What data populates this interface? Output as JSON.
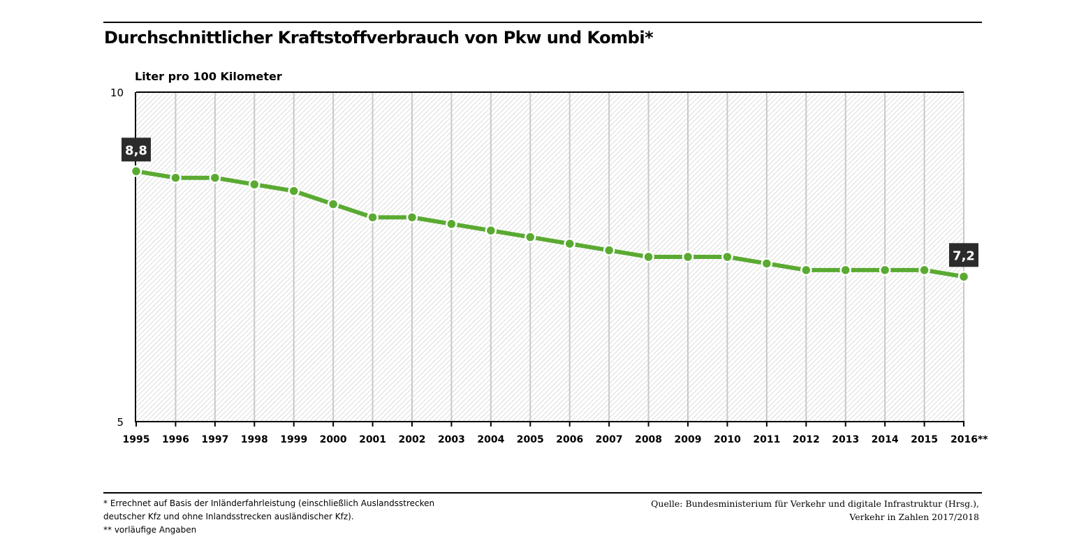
{
  "chart_data": {
    "type": "line",
    "title": "Durchschnittlicher Kraftstoffverbrauch von Pkw und Kombi*",
    "ylabel": "Liter pro 100 Kilometer",
    "xlabel": "",
    "ylim": [
      5,
      10
    ],
    "yticks": [
      "5",
      "10"
    ],
    "grid": "vertical",
    "categories": [
      "1995",
      "1996",
      "1997",
      "1998",
      "1999",
      "2000",
      "2001",
      "2002",
      "2003",
      "2004",
      "2005",
      "2006",
      "2007",
      "2008",
      "2009",
      "2010",
      "2011",
      "2012",
      "2013",
      "2014",
      "2015",
      "2016**"
    ],
    "series": [
      {
        "values": [
          8.8,
          8.7,
          8.7,
          8.6,
          8.5,
          8.3,
          8.1,
          8.1,
          8.0,
          7.9,
          7.8,
          7.7,
          7.6,
          7.5,
          7.5,
          7.5,
          7.4,
          7.3,
          7.3,
          7.3,
          7.3,
          7.2
        ]
      }
    ],
    "data_labels": [
      {
        "index": 0,
        "text": "8,8"
      },
      {
        "index": 21,
        "text": "7,2"
      }
    ],
    "colors": {
      "line": "#5aaa32",
      "label_box": "#2b2b2b",
      "grid": "#c8c8c8",
      "hatch": "#d2d2d2"
    }
  },
  "footnotes": {
    "left": [
      "* Errechnet auf Basis der Inländerfahrleistung (einschließlich Auslandsstrecken",
      "deutscher Kfz und ohne Inlandsstrecken ausländischer Kfz).",
      "** vorläufige Angaben"
    ],
    "right": [
      "Quelle: Bundesministerium für Verkehr und digitale Infrastruktur (Hrsg.),",
      "Verkehr in Zahlen 2017/2018"
    ]
  }
}
